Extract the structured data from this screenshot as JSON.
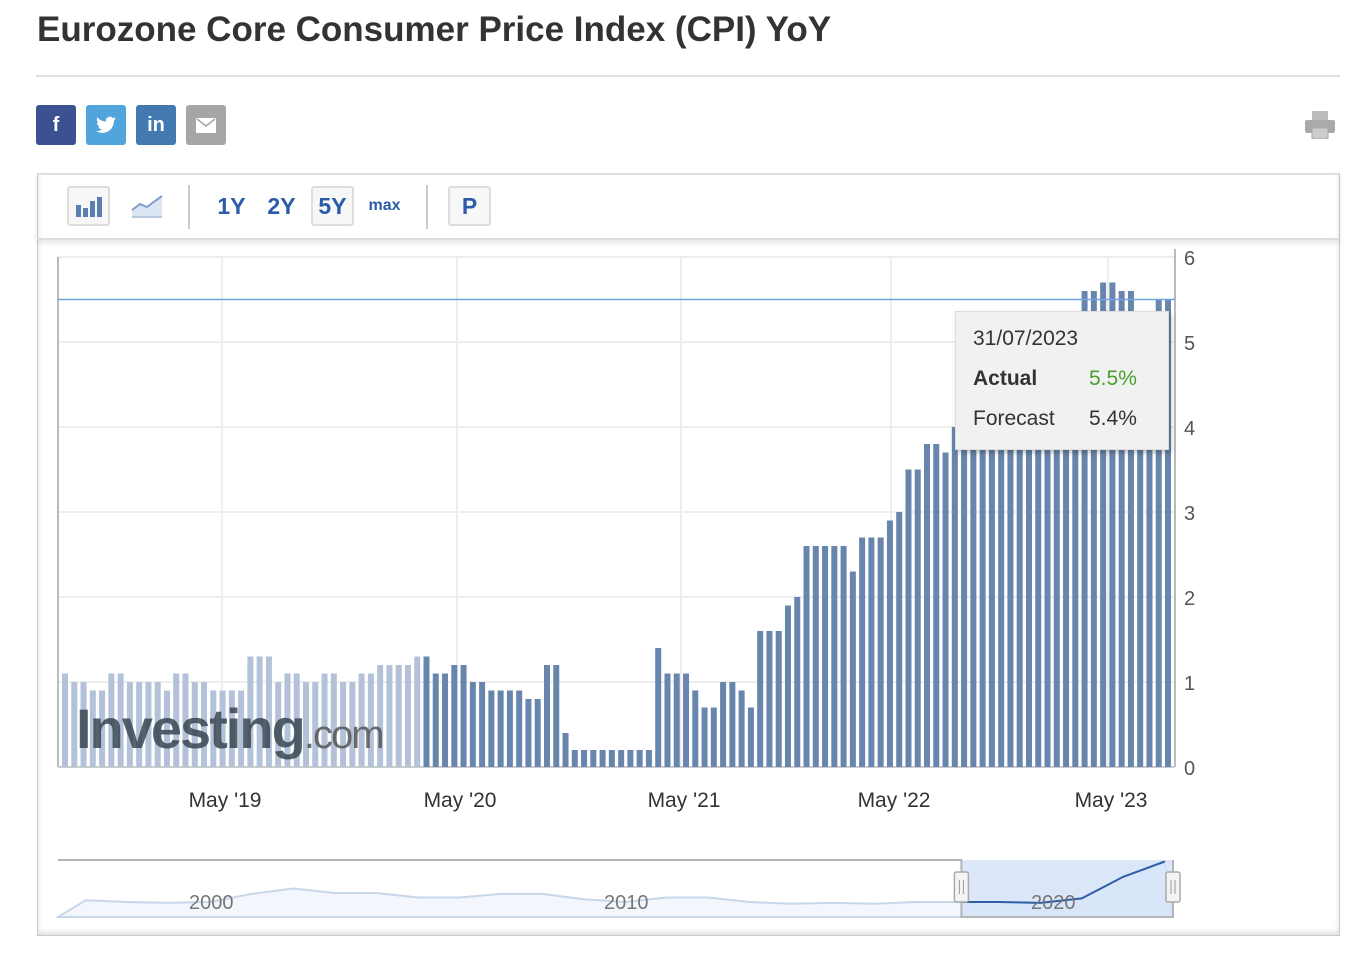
{
  "page": {
    "title": "Eurozone Core Consumer Price Index (CPI) YoY"
  },
  "share": [
    {
      "name": "facebook",
      "glyph": "f",
      "color": "#3b5191"
    },
    {
      "name": "twitter",
      "glyph": "t",
      "color": "#50a5dc"
    },
    {
      "name": "linkedin",
      "glyph": "in",
      "color": "#4279b0"
    },
    {
      "name": "email",
      "glyph": "✉",
      "color": "#a6a6a6"
    }
  ],
  "toolbar": {
    "ranges": [
      "1Y",
      "2Y",
      "5Y",
      "max"
    ],
    "selected_range": "5Y",
    "p_label": "P",
    "chart_types": [
      "bar-chart-icon",
      "area-chart-icon"
    ]
  },
  "tooltip": {
    "date": "31/07/2023",
    "actual_label": "Actual",
    "actual_value": "5.5%",
    "forecast_label": "Forecast",
    "forecast_value": "5.4%",
    "actual_color": "#4aa02c"
  },
  "chart_data": {
    "type": "bar",
    "title": "",
    "xlabel": "",
    "ylabel": "",
    "ylim": [
      0,
      6
    ],
    "yticks": [
      0,
      1,
      2,
      3,
      4,
      5,
      6
    ],
    "xtick_labels": [
      "May '19",
      "May '20",
      "May '21",
      "May '22",
      "May '23"
    ],
    "grid": true,
    "bar_color": "#6885ad",
    "current_value_line": 5.5,
    "period": "Aug 2018 – Jul 2023, two releases per month (flash and final)",
    "values": [
      1.1,
      1.0,
      1.0,
      0.9,
      0.9,
      1.1,
      1.1,
      1.0,
      1.0,
      1.0,
      1.0,
      0.9,
      1.1,
      1.1,
      1.0,
      1.0,
      0.9,
      0.9,
      0.9,
      0.9,
      1.3,
      1.3,
      1.3,
      1.0,
      1.1,
      1.1,
      1.0,
      1.0,
      1.1,
      1.1,
      1.0,
      1.0,
      1.1,
      1.1,
      1.2,
      1.2,
      1.2,
      1.2,
      1.3,
      1.3,
      1.1,
      1.1,
      1.2,
      1.2,
      1.0,
      1.0,
      0.9,
      0.9,
      0.9,
      0.9,
      0.8,
      0.8,
      1.2,
      1.2,
      0.4,
      0.2,
      0.2,
      0.2,
      0.2,
      0.2,
      0.2,
      0.2,
      0.2,
      0.2,
      1.4,
      1.1,
      1.1,
      1.1,
      0.9,
      0.7,
      0.7,
      1.0,
      1.0,
      0.9,
      0.7,
      1.6,
      1.6,
      1.6,
      1.9,
      2.0,
      2.6,
      2.6,
      2.6,
      2.6,
      2.6,
      2.3,
      2.7,
      2.7,
      2.7,
      2.9,
      3.0,
      3.5,
      3.5,
      3.8,
      3.8,
      3.7,
      4.0,
      4.3,
      4.3,
      4.3,
      4.8,
      4.8,
      5.0,
      5.0,
      5.0,
      5.0,
      5.2,
      5.2,
      5.3,
      5.3,
      5.6,
      5.6,
      5.7,
      5.7,
      5.6,
      5.6,
      5.3,
      5.3,
      5.5,
      5.5
    ],
    "navigator": {
      "xtick_labels": [
        "2000",
        "2010",
        "2020"
      ],
      "years": [
        1997,
        1998,
        1999,
        2000,
        2001,
        2002,
        2003,
        2004,
        2005,
        2006,
        2007,
        2008,
        2009,
        2010,
        2011,
        2012,
        2013,
        2014,
        2015,
        2016,
        2017,
        2018,
        2019,
        2020,
        2021,
        2022,
        2023
      ],
      "values": [
        1.2,
        1.0,
        0.9,
        1.0,
        1.9,
        2.5,
        2.0,
        2.0,
        1.5,
        1.5,
        1.9,
        1.9,
        1.3,
        1.0,
        1.5,
        1.5,
        1.0,
        0.8,
        0.9,
        0.8,
        1.0,
        1.0,
        1.0,
        0.9,
        1.4,
        3.8,
        5.5
      ],
      "selected_from": 2018.6,
      "selected_to": 2023.6
    },
    "watermark": "Investing.com"
  }
}
